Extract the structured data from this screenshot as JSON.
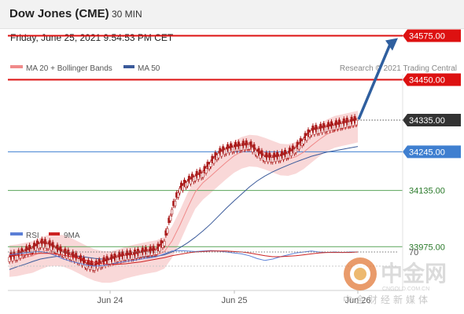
{
  "header": {
    "title": "Dow Jones (CME)",
    "timeframe": "30 MIN",
    "datetime": "Friday, June 25, 2021 9:54:53 PM CET"
  },
  "legend": {
    "ma20_label": "MA 20 + Bollinger Bands",
    "ma50_label": "MA 50",
    "copyright": "Research © 2021 Trading Central"
  },
  "rsi_legend": {
    "rsi_label": "RSI",
    "ma9_label": "9MA"
  },
  "watermark": {
    "brand": "中金网",
    "domain": "CNGOLD.COM.CN",
    "slogan": "中金财经新媒体"
  },
  "colors": {
    "resistance": "#dd1111",
    "current": "#333333",
    "pivot": "#3f7fd0",
    "support": "#5aa55a",
    "support_text": "#2a7a2a",
    "ma20": "#f08a8a",
    "band_fill": "#f9d8d8",
    "ma50": "#3a5a9a",
    "arrow": "#2f5f9f",
    "rsi": "#5b7fd6",
    "rsi_ma": "#cc2222",
    "candle": "#aa1c1c"
  },
  "chart_data": {
    "type": "line",
    "x_ticks": [
      "Jun 24",
      "Jun 25",
      "Jun 26"
    ],
    "levels": [
      {
        "value": 34575.0,
        "label": "34575.00",
        "kind": "resistance"
      },
      {
        "value": 34450.0,
        "label": "34450.00",
        "kind": "resistance"
      },
      {
        "value": 34335.0,
        "label": "34335.00",
        "kind": "current"
      },
      {
        "value": 34245.0,
        "label": "34245.00",
        "kind": "pivot"
      },
      {
        "value": 34135.0,
        "label": "34135.00",
        "kind": "support"
      },
      {
        "value": 33975.0,
        "label": "33975.00",
        "kind": "support"
      }
    ],
    "price_series": [
      33945,
      33950,
      33962,
      33970,
      33985,
      33982,
      33970,
      33958,
      33950,
      33940,
      33925,
      33920,
      33930,
      33938,
      33945,
      33950,
      33952,
      33958,
      33962,
      33965,
      33990,
      34080,
      34140,
      34160,
      34175,
      34185,
      34215,
      34240,
      34252,
      34258,
      34262,
      34265,
      34245,
      34230,
      34228,
      34232,
      34240,
      34255,
      34280,
      34305,
      34310,
      34315,
      34320,
      34325,
      34330,
      34335
    ],
    "ma50_series": [
      33910,
      33918,
      33925,
      33933,
      33940,
      33944,
      33947,
      33949,
      33949,
      33948,
      33945,
      33942,
      33940,
      33940,
      33941,
      33942,
      33943,
      33945,
      33946,
      33948,
      33952,
      33960,
      33972,
      33986,
      34002,
      34020,
      34040,
      34062,
      34084,
      34105,
      34125,
      34145,
      34162,
      34176,
      34188,
      34198,
      34207,
      34216,
      34224,
      34232,
      34238,
      34244,
      34248,
      34252,
      34256,
      34260
    ],
    "forecast_target": 34575.0,
    "rsi_level": 70,
    "rsi_series": [
      64,
      66,
      68,
      70,
      71,
      68,
      62,
      55,
      50,
      46,
      42,
      40,
      41,
      44,
      47,
      50,
      52,
      55,
      57,
      60,
      66,
      72,
      73,
      72,
      71,
      72,
      73,
      72,
      70,
      68,
      66,
      62,
      56,
      52,
      55,
      60,
      64,
      68,
      70,
      72,
      70,
      69,
      70,
      69,
      70,
      70
    ],
    "rsi_ma_series": [
      62,
      63,
      64,
      66,
      67,
      67,
      66,
      63,
      60,
      56,
      52,
      48,
      45,
      44,
      44,
      45,
      47,
      49,
      52,
      55,
      58,
      62,
      65,
      68,
      70,
      71,
      72,
      72,
      72,
      71,
      70,
      68,
      65,
      62,
      60,
      60,
      61,
      62,
      64,
      66,
      68,
      69,
      69,
      69,
      69,
      70
    ]
  }
}
